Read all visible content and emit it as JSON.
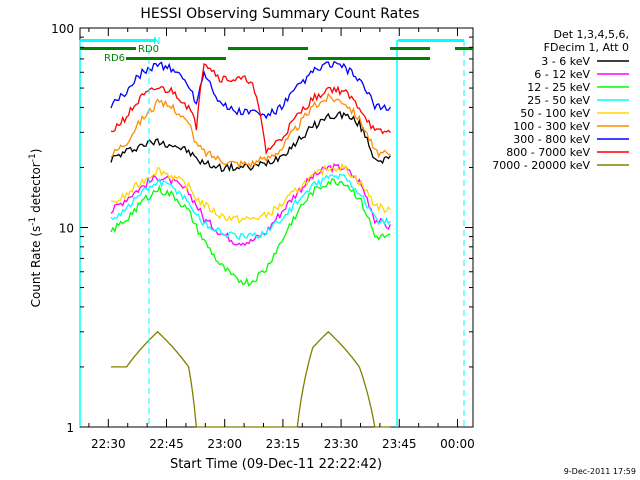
{
  "chart_data": {
    "type": "line",
    "title": "HESSI Observing Summary Count Rates",
    "xlabel": "Start Time (09-Dec-11 22:22:42)",
    "ylabel": "Count Rate (s⁻¹ detector⁻¹)",
    "ylabel_main": "Count Rate (s",
    "ylabel_sup1": "-1",
    "ylabel_mid": " detector",
    "ylabel_sup2": "-1",
    "ylabel_end": ")",
    "y_scale": "log",
    "ylim": [
      1,
      100
    ],
    "xlim": [
      "22:22:42",
      "00:04:00"
    ],
    "x_ticks": [
      "22:30",
      "22:45",
      "23:00",
      "23:15",
      "23:30",
      "23:45",
      "00:00"
    ],
    "y_ticks": [
      "1",
      "10",
      "100"
    ],
    "grid": false,
    "legend_position": "right",
    "legend_header": [
      "Det 1,3,4,5,6,",
      "FDecim 1, Att 0"
    ],
    "x_minutes": [
      8,
      12,
      16,
      20,
      24,
      28,
      30,
      32,
      36,
      40,
      44,
      48,
      52,
      56,
      60,
      64,
      68,
      72,
      76,
      80
    ],
    "series": [
      {
        "name": "3 - 6 keV",
        "color": "#000000",
        "values": [
          22,
          24,
          26,
          27,
          26,
          24,
          22,
          21,
          20,
          20,
          20,
          21,
          23,
          27,
          32,
          36,
          37,
          33,
          22,
          22
        ]
      },
      {
        "name": "6 - 12 keV",
        "color": "#ff00ff",
        "values": [
          12,
          14,
          16,
          18,
          17,
          15,
          13,
          11,
          9.5,
          8.5,
          8.5,
          9.5,
          12,
          15,
          18,
          20,
          20,
          17,
          11,
          10
        ]
      },
      {
        "name": "12 - 25 keV",
        "color": "#00ff00",
        "values": [
          9.5,
          11,
          13.5,
          15.5,
          14.5,
          12,
          10,
          8.5,
          6.5,
          5.5,
          5.3,
          6.2,
          8.5,
          12,
          15,
          17,
          17,
          14,
          9,
          9
        ]
      },
      {
        "name": "25 - 50 keV",
        "color": "#00ffff",
        "values": [
          11,
          12.5,
          15,
          17,
          16,
          13.5,
          11.5,
          10.5,
          9.5,
          9,
          9,
          9.5,
          11,
          13.5,
          16,
          18,
          18,
          15,
          11,
          10.5
        ]
      },
      {
        "name": "50 - 100 keV",
        "color": "#ffd700",
        "values": [
          13,
          14.5,
          17,
          19.5,
          18,
          16,
          14,
          13,
          11.5,
          11,
          11,
          11.5,
          13,
          15.5,
          18,
          20,
          20,
          17,
          13,
          12
        ]
      },
      {
        "name": "100 - 300 keV",
        "color": "#ff8c00",
        "values": [
          23,
          27,
          35,
          42,
          40,
          33,
          26,
          24,
          22,
          21,
          21,
          22,
          25,
          32,
          40,
          45,
          43,
          35,
          24,
          23
        ]
      },
      {
        "name": "300 - 800 keV",
        "color": "#0000ff",
        "values": [
          40,
          48,
          60,
          66,
          62,
          52,
          42,
          60,
          42,
          38,
          38,
          36,
          40,
          50,
          60,
          66,
          64,
          55,
          40,
          40
        ]
      },
      {
        "name": "800 - 7000 keV",
        "color": "#ff0000",
        "values": [
          30,
          36,
          45,
          50,
          48,
          40,
          32,
          68,
          56,
          55,
          55,
          24,
          28,
          36,
          44,
          50,
          48,
          40,
          30,
          30
        ]
      },
      {
        "name": "7000 - 20000 keV",
        "color": "#808000",
        "values": [
          2,
          2,
          2.5,
          3,
          2.5,
          2,
          1,
          1,
          1,
          1,
          1,
          1,
          1,
          1,
          2.5,
          3,
          2.5,
          2,
          1,
          1
        ]
      }
    ],
    "flags": [
      {
        "name": "N",
        "color": "#00ffff"
      },
      {
        "name": "RD0",
        "color": "#008000"
      },
      {
        "name": "RD6",
        "color": "#008000"
      }
    ],
    "timestamp": "9-Dec-2011 17:59"
  }
}
